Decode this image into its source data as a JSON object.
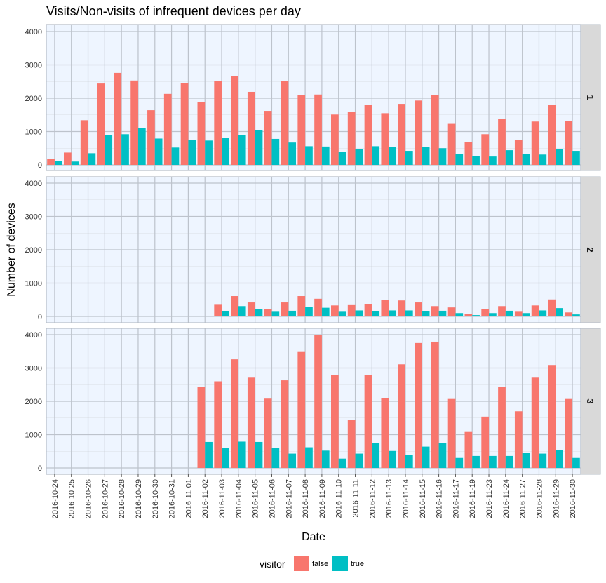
{
  "chart_data": {
    "type": "bar",
    "title": "Visits/Non-visits of infrequent devices per day",
    "xlabel": "Date",
    "ylabel": "Number of devices",
    "ylim": [
      0,
      4200
    ],
    "yticks": [
      0,
      1000,
      2000,
      3000,
      4000
    ],
    "grid": true,
    "legend": {
      "title": "visitor",
      "position": "bottom"
    },
    "categories": [
      "2016-10-24",
      "2016-10-25",
      "2016-10-26",
      "2016-10-27",
      "2016-10-28",
      "2016-10-29",
      "2016-10-30",
      "2016-10-31",
      "2016-11-01",
      "2016-11-02",
      "2016-11-03",
      "2016-11-04",
      "2016-11-05",
      "2016-11-06",
      "2016-11-07",
      "2016-11-08",
      "2016-11-09",
      "2016-11-10",
      "2016-11-11",
      "2016-11-12",
      "2016-11-13",
      "2016-11-14",
      "2016-11-15",
      "2016-11-16",
      "2016-11-17",
      "2016-11-19",
      "2016-11-23",
      "2016-11-24",
      "2016-11-27",
      "2016-11-28",
      "2016-11-29",
      "2016-11-30"
    ],
    "series_names": [
      "false",
      "true"
    ],
    "series_colors": [
      "#F8766D",
      "#00BFC4"
    ],
    "panels": [
      {
        "label": "1",
        "series": [
          {
            "name": "false",
            "values": [
              180,
              370,
              1340,
              2440,
              2760,
              2530,
              1640,
              2130,
              2460,
              1890,
              2510,
              2660,
              2190,
              1620,
              2510,
              2100,
              2110,
              1510,
              1590,
              1810,
              1550,
              1830,
              1930,
              2090,
              1230,
              690,
              920,
              1380,
              750,
              1300,
              1790,
              1320
            ]
          },
          {
            "name": "true",
            "values": [
              110,
              100,
              350,
              900,
              920,
              1110,
              790,
              520,
              750,
              730,
              800,
              900,
              1050,
              780,
              670,
              560,
              550,
              390,
              470,
              560,
              540,
              420,
              540,
              500,
              330,
              260,
              250,
              440,
              330,
              310,
              470,
              420
            ]
          }
        ]
      },
      {
        "label": "2",
        "series": [
          {
            "name": "false",
            "values": [
              0,
              0,
              0,
              0,
              0,
              0,
              0,
              0,
              0,
              20,
              350,
              610,
              420,
              230,
              420,
              610,
              530,
              330,
              340,
              370,
              490,
              480,
              420,
              310,
              270,
              80,
              230,
              310,
              140,
              330,
              510,
              120
            ]
          },
          {
            "name": "true",
            "values": [
              0,
              0,
              0,
              0,
              0,
              0,
              0,
              0,
              0,
              10,
              160,
              310,
              230,
              140,
              170,
              290,
              260,
              140,
              180,
              160,
              180,
              180,
              160,
              170,
              100,
              40,
              100,
              170,
              100,
              180,
              250,
              60
            ]
          }
        ]
      },
      {
        "label": "3",
        "series": [
          {
            "name": "false",
            "values": [
              0,
              0,
              0,
              0,
              0,
              0,
              0,
              0,
              0,
              2440,
              2600,
              3260,
              2710,
              2080,
              2630,
              3480,
              4000,
              2780,
              1440,
              2800,
              2090,
              3110,
              3750,
              3790,
              2070,
              1080,
              1540,
              2440,
              1700,
              2710,
              3090,
              2070
            ]
          },
          {
            "name": "true",
            "values": [
              0,
              0,
              0,
              0,
              0,
              0,
              0,
              0,
              0,
              780,
              600,
              790,
              780,
              600,
              430,
              620,
              520,
              280,
              430,
              750,
              510,
              390,
              640,
              750,
              300,
              360,
              360,
              360,
              450,
              430,
              540,
              300
            ]
          }
        ]
      }
    ]
  }
}
